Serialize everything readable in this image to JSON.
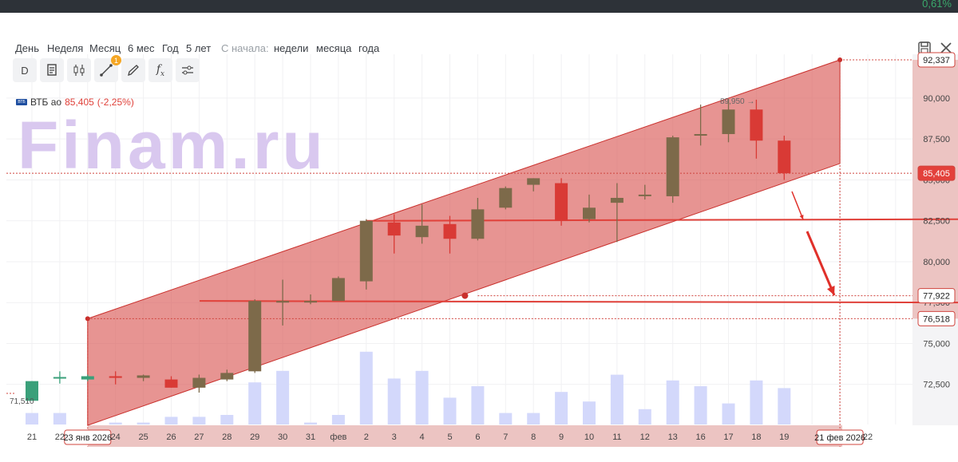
{
  "top_strip": {
    "right_text": "0,61%"
  },
  "periods": [
    {
      "label": "День",
      "name": "period-day"
    },
    {
      "label": "Неделя",
      "name": "period-week"
    },
    {
      "label": "Месяц",
      "name": "period-month"
    },
    {
      "label": "6 мес",
      "name": "period-6m"
    },
    {
      "label": "Год",
      "name": "period-year"
    },
    {
      "label": "5 лет",
      "name": "period-5y"
    }
  ],
  "since_label": "С начала:",
  "since_options": [
    {
      "label": "недели",
      "name": "since-week"
    },
    {
      "label": "месяца",
      "name": "since-month"
    },
    {
      "label": "года",
      "name": "since-year"
    }
  ],
  "tools": [
    {
      "name": "interval-selector",
      "icon": "letter-d",
      "label": "D"
    },
    {
      "name": "chart-type-tool",
      "icon": "document-icon"
    },
    {
      "name": "candles-tool",
      "icon": "candles-icon"
    },
    {
      "name": "drawing-tool",
      "icon": "line-tool-icon",
      "badge": "1"
    },
    {
      "name": "pattern-tool",
      "icon": "pencil-icon"
    },
    {
      "name": "indicators-tool",
      "icon": "fx-icon"
    },
    {
      "name": "settings-tool",
      "icon": "sliders-icon"
    }
  ],
  "ticker": {
    "logo": "ВТБ",
    "name": "ВТБ ао",
    "price": "85,405",
    "change": "(-2,25%)"
  },
  "watermark": "Finam.ru",
  "colors": {
    "up": "#7d6a4a",
    "down": "#d93a35",
    "up_early": "#3aa07a",
    "channel": "#d9534f",
    "volume": "#d3d8fb",
    "line": "#e0413a"
  },
  "chart_data": {
    "type": "candlestick",
    "x_labels": [
      "21",
      "22",
      "23",
      "24",
      "25",
      "26",
      "27",
      "28",
      "29",
      "30",
      "31",
      "фев",
      "2",
      "3",
      "4",
      "5",
      "6",
      "7",
      "8",
      "9",
      "10",
      "11",
      "12",
      "13",
      "16",
      "17",
      "18",
      "19",
      "20",
      "21",
      "22",
      "23"
    ],
    "ylim": [
      70000,
      93000
    ],
    "y_ticks": [
      "72,500",
      "75,000",
      "77,500",
      "80,000",
      "82,500",
      "85,000",
      "87,500",
      "90,000"
    ],
    "candles": [
      {
        "x": "21",
        "open": 71500,
        "high": 72700,
        "low": 71500,
        "close": 72700
      },
      {
        "x": "22",
        "open": 72950,
        "high": 73300,
        "low": 72550,
        "close": 72950
      },
      {
        "x": "23",
        "open": 72800,
        "high": 73100,
        "low": 72700,
        "close": 73000
      },
      {
        "x": "24",
        "open": 73000,
        "high": 73300,
        "low": 72500,
        "close": 72900
      },
      {
        "x": "25",
        "open": 72900,
        "high": 73100,
        "low": 72700,
        "close": 73050
      },
      {
        "x": "26",
        "open": 72800,
        "high": 73000,
        "low": 72300,
        "close": 72300
      },
      {
        "x": "27",
        "open": 72300,
        "high": 73100,
        "low": 72000,
        "close": 72900
      },
      {
        "x": "28",
        "open": 72800,
        "high": 73400,
        "low": 72700,
        "close": 73200
      },
      {
        "x": "29",
        "open": 73300,
        "high": 77700,
        "low": 73200,
        "close": 77600
      },
      {
        "x": "30",
        "open": 77500,
        "high": 78900,
        "low": 76100,
        "close": 77600
      },
      {
        "x": "31",
        "open": 77600,
        "high": 78000,
        "low": 77400,
        "close": 77600
      },
      {
        "x": "фев",
        "open": 77600,
        "high": 79100,
        "low": 77600,
        "close": 79000
      },
      {
        "x": "2",
        "open": 78800,
        "high": 82600,
        "low": 78300,
        "close": 82500
      },
      {
        "x": "3",
        "open": 82400,
        "high": 82900,
        "low": 80500,
        "close": 81600
      },
      {
        "x": "4",
        "open": 81500,
        "high": 83500,
        "low": 81100,
        "close": 82200
      },
      {
        "x": "5",
        "open": 82300,
        "high": 82800,
        "low": 80500,
        "close": 81400
      },
      {
        "x": "6",
        "open": 81400,
        "high": 83900,
        "low": 81300,
        "close": 83200
      },
      {
        "x": "7",
        "open": 83300,
        "high": 84600,
        "low": 83200,
        "close": 84500
      },
      {
        "x": "8",
        "open": 84700,
        "high": 85100,
        "low": 84300,
        "close": 85100
      },
      {
        "x": "9",
        "open": 84800,
        "high": 85100,
        "low": 82200,
        "close": 82500
      },
      {
        "x": "10",
        "open": 82600,
        "high": 84100,
        "low": 82400,
        "close": 83300
      },
      {
        "x": "11",
        "open": 83600,
        "high": 84800,
        "low": 81200,
        "close": 83900
      },
      {
        "x": "12",
        "open": 84100,
        "high": 84700,
        "low": 83800,
        "close": 84100
      },
      {
        "x": "13",
        "open": 84000,
        "high": 87700,
        "low": 83600,
        "close": 87600
      },
      {
        "x": "16",
        "open": 87800,
        "high": 89600,
        "low": 87100,
        "close": 87800
      },
      {
        "x": "17",
        "open": 87800,
        "high": 89950,
        "low": 87300,
        "close": 89300
      },
      {
        "x": "18",
        "open": 89300,
        "high": 89900,
        "low": 86300,
        "close": 87400
      },
      {
        "x": "19",
        "open": 87400,
        "high": 87700,
        "low": 85000,
        "close": 85405
      }
    ],
    "volumes": [
      {
        "x": "21",
        "value": 0.3
      },
      {
        "x": "22",
        "value": 0.3
      },
      {
        "x": "24",
        "value": 0.05
      },
      {
        "x": "25",
        "value": 0.05
      },
      {
        "x": "26",
        "value": 0.2
      },
      {
        "x": "27",
        "value": 0.2
      },
      {
        "x": "28",
        "value": 0.25
      },
      {
        "x": "29",
        "value": 1.1
      },
      {
        "x": "30",
        "value": 1.4
      },
      {
        "x": "31",
        "value": 0.05
      },
      {
        "x": "фев",
        "value": 0.25
      },
      {
        "x": "2",
        "value": 1.9
      },
      {
        "x": "3",
        "value": 1.2
      },
      {
        "x": "4",
        "value": 1.4
      },
      {
        "x": "5",
        "value": 0.7
      },
      {
        "x": "6",
        "value": 1.0
      },
      {
        "x": "7",
        "value": 0.3
      },
      {
        "x": "8",
        "value": 0.3
      },
      {
        "x": "9",
        "value": 0.85
      },
      {
        "x": "10",
        "value": 0.6
      },
      {
        "x": "11",
        "value": 1.3
      },
      {
        "x": "12",
        "value": 0.4
      },
      {
        "x": "13",
        "value": 1.15
      },
      {
        "x": "16",
        "value": 1.0
      },
      {
        "x": "17",
        "value": 0.55
      },
      {
        "x": "18",
        "value": 1.15
      },
      {
        "x": "19",
        "value": 0.95
      }
    ],
    "price_line": {
      "value": 85405,
      "label": "85,405"
    },
    "level_labels": [
      {
        "value": 92337,
        "label": "92,337"
      },
      {
        "value": 77922,
        "label": "77,922"
      },
      {
        "value": 76518,
        "label": "76,518"
      }
    ],
    "channel": {
      "lower": [
        {
          "x": "23",
          "y": 70000
        },
        {
          "x": "21 фев",
          "y": 86000
        }
      ],
      "upper": [
        {
          "x": "23",
          "y": 76518
        },
        {
          "x": "21 фев",
          "y": 92337
        }
      ]
    },
    "h_lines": [
      {
        "from": "2",
        "to": "22",
        "y": 82500
      },
      {
        "from": "28",
        "to": "22",
        "y": 77600
      }
    ],
    "level_marker": {
      "x": "6",
      "y": 77922
    },
    "start_label": {
      "value": 71510,
      "label": "71,510"
    },
    "high_annotation": {
      "x": "17",
      "label": "89,950"
    },
    "date_labels": [
      {
        "x": "23",
        "label": "23 янв 2026"
      },
      {
        "x": "21 фев",
        "label": "21 фев 2026"
      }
    ]
  }
}
